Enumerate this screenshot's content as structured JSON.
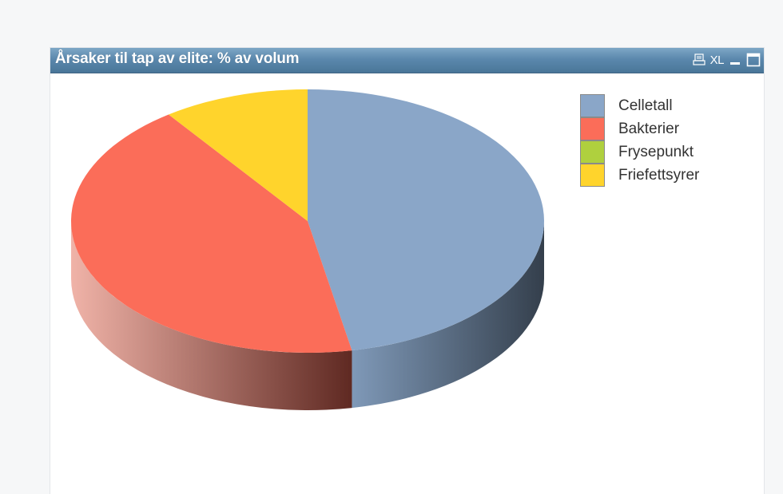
{
  "caption": {
    "title": "Årsaker til tap av elite: % av volum",
    "icons": [
      "print-icon",
      "export-excel-icon",
      "minimize-icon",
      "maximize-icon"
    ],
    "xl_label": "XL"
  },
  "chart_data": {
    "type": "pie",
    "title": "Årsaker til tap av elite: % av volum",
    "categories": [
      "Celletall",
      "Bakterier",
      "Frysepunkt",
      "Friefettsyrer"
    ],
    "values": [
      47,
      43,
      0,
      10
    ],
    "unit": "%",
    "colors": [
      "#8aa6c8",
      "#fb6d59",
      "#afd03e",
      "#ffd42c"
    ],
    "style": "3d",
    "legend_position": "top-right"
  }
}
